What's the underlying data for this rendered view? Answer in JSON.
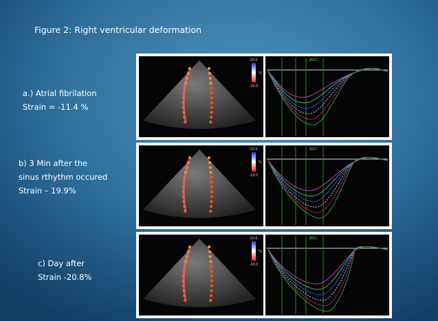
{
  "title": "Figure 2: Right  ventricular deformation",
  "panels": [
    {
      "label_lines": [
        "a.) Atrial fibrilation",
        "Strain = -11.4 %"
      ],
      "scale_top": "20.0",
      "scale_bottom": "-20.0",
      "scale_unit": "%",
      "marker": "AVC"
    },
    {
      "label_lines": [
        "b) 3 Min after the",
        "sinus rthythm  occured",
        "Strain – 19.9%"
      ],
      "scale_top": "20.0",
      "scale_bottom": "-20.0",
      "scale_unit": "%",
      "marker": "AVC"
    },
    {
      "label_lines": [
        "c) Day after",
        "Strain  -20.8%"
      ],
      "scale_top": "20.0",
      "scale_bottom": "-20.0",
      "scale_unit": "%",
      "marker": "AVC"
    }
  ]
}
